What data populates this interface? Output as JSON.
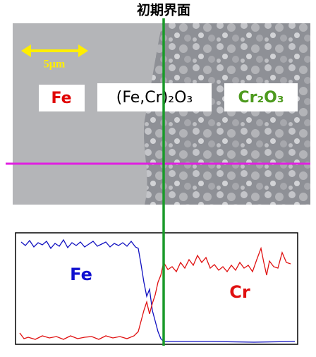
{
  "figure": {
    "title": "初期界面",
    "scale_bar": "5μm",
    "regions": {
      "left": "Fe",
      "middle": "(Fe,Cr)₂O₃",
      "right": "Cr₂O₃"
    },
    "profile": {
      "fe_label": "Fe",
      "cr_label": "Cr"
    }
  }
}
